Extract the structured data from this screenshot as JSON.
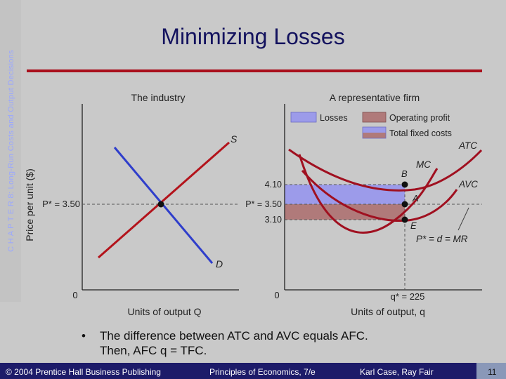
{
  "slide": {
    "title": "Minimizing Losses",
    "side_label": "C H A P T E R  8:  Long-Run Costs and Output Decisions",
    "bullet": {
      "marker": "•",
      "line1": "The difference between ATC and AVC equals AFC.",
      "line2_a": "Then, AFC",
      "line2_symbol": "",
      "line2_b": " q = TFC."
    },
    "footer": {
      "copyright": "© 2004 Prentice Hall Business Publishing",
      "book": "Principles of Economics, 7/e",
      "authors": "Karl Case, Ray Fair",
      "page": "11"
    },
    "colors": {
      "title": "#13125e",
      "rule": "#a90f1c",
      "footer_bg": "#1d1b69",
      "supply": "#b3131b",
      "demand": "#2f3ecb",
      "losses": "#9c9bea",
      "operating_profit": "#b07a7a"
    }
  },
  "chart_data": [
    {
      "type": "line",
      "title": "The industry",
      "ylabel": "Price per unit ($)",
      "xlabel": "Units of output  Q",
      "origin_label": "0",
      "series": [
        {
          "name": "S",
          "points": [
            [
              0.06,
              0.1
            ],
            [
              0.95,
              1.06
            ]
          ]
        },
        {
          "name": "D",
          "points": [
            [
              0.1,
              0.98
            ],
            [
              0.94,
              0.1
            ]
          ]
        }
      ],
      "equilibrium": {
        "label": "P* = 3.50",
        "x": 0.5,
        "y": 0.58
      }
    },
    {
      "type": "line",
      "title": "A representative firm",
      "xlabel": "Units of output, q",
      "origin_label": "0",
      "legend": [
        "Losses",
        "Operating profit",
        "Total fixed costs"
      ],
      "price_labels": [
        "4.10",
        "P* = 3.50",
        "3.10"
      ],
      "price_values": [
        4.1,
        3.5,
        3.1
      ],
      "q_label": "q* = 225",
      "q_star": 225,
      "curves": [
        "ATC",
        "MC",
        "AVC",
        "P* = d = MR"
      ],
      "points": [
        {
          "label": "B",
          "q": 225,
          "price": 4.1
        },
        {
          "label": "A",
          "q": 225,
          "price": 3.5
        },
        {
          "label": "E",
          "q": 225,
          "price": 3.1
        }
      ]
    }
  ]
}
